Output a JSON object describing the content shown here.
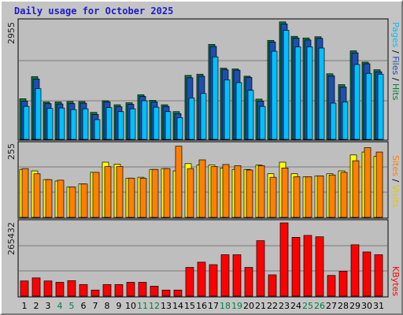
{
  "window": {
    "title": "Daily usage for October 2025"
  },
  "colors": {
    "background": "#c4c4c4",
    "plot_bg": "#bebebe",
    "pages": "#00c0ff",
    "files": "#2e8b57",
    "hits": "#008040",
    "sites": "#ff8000",
    "visits": "#ffff00",
    "kbytes": "#ff0000",
    "title": "#1c1cc8",
    "weekend_label": "#008040",
    "weekday_label": "#000000"
  },
  "chart_data": [
    {
      "type": "bar",
      "panel": "hits-files-pages",
      "ytick_top": "2955",
      "ymax": 2955,
      "right_label": {
        "first": "Pages",
        "sep1": " / ",
        "second": "Files",
        "sep2": " / ",
        "third": "Hits"
      },
      "categories": [
        "1",
        "2",
        "3",
        "4",
        "5",
        "6",
        "7",
        "8",
        "9",
        "10",
        "11",
        "12",
        "13",
        "14",
        "15",
        "16",
        "17",
        "18",
        "19",
        "20",
        "21",
        "22",
        "23",
        "24",
        "25",
        "26",
        "27",
        "28",
        "29",
        "30",
        "31"
      ],
      "weekend_days": [
        4,
        5,
        11,
        12,
        18,
        19,
        25,
        26
      ],
      "series": [
        {
          "name": "Hits",
          "values": [
            1010,
            1560,
            930,
            930,
            940,
            940,
            670,
            960,
            860,
            910,
            1110,
            970,
            860,
            690,
            1590,
            1620,
            2360,
            1770,
            1750,
            1570,
            1000,
            2460,
            2920,
            2560,
            2520,
            2550,
            1630,
            1360,
            2200,
            1920,
            1730
          ]
        },
        {
          "name": "Files",
          "values": [
            950,
            1500,
            890,
            880,
            890,
            900,
            620,
            930,
            810,
            870,
            1070,
            930,
            820,
            640,
            1530,
            1570,
            2310,
            1730,
            1720,
            1540,
            950,
            2420,
            2870,
            2520,
            2470,
            2510,
            1580,
            1300,
            2150,
            1880,
            1680
          ]
        },
        {
          "name": "Pages",
          "values": [
            820,
            1260,
            770,
            780,
            740,
            760,
            490,
            790,
            690,
            760,
            960,
            800,
            690,
            540,
            1030,
            1140,
            2050,
            1480,
            1410,
            1220,
            820,
            2190,
            2710,
            2300,
            2300,
            2270,
            900,
            930,
            1860,
            1640,
            1620
          ]
        }
      ]
    },
    {
      "type": "bar",
      "panel": "visits-sites",
      "ytick_top": "255",
      "ymax": 255,
      "right_label": {
        "first": "Sites",
        "sep1": " / ",
        "second": "Visits"
      },
      "categories": [
        "1",
        "2",
        "3",
        "4",
        "5",
        "6",
        "7",
        "8",
        "9",
        "10",
        "11",
        "12",
        "13",
        "14",
        "15",
        "16",
        "17",
        "18",
        "19",
        "20",
        "21",
        "22",
        "23",
        "24",
        "25",
        "26",
        "27",
        "28",
        "29",
        "30",
        "31"
      ],
      "series": [
        {
          "name": "Visits",
          "values": [
            165,
            160,
            130,
            125,
            105,
            115,
            155,
            190,
            183,
            135,
            138,
            165,
            168,
            160,
            185,
            180,
            180,
            170,
            165,
            165,
            180,
            150,
            190,
            150,
            140,
            143,
            150,
            160,
            215,
            225,
            210
          ]
        },
        {
          "name": "Sites",
          "values": [
            168,
            150,
            130,
            128,
            105,
            115,
            155,
            175,
            175,
            135,
            135,
            165,
            168,
            245,
            168,
            198,
            175,
            182,
            178,
            163,
            178,
            138,
            170,
            140,
            140,
            143,
            146,
            155,
            195,
            240,
            225
          ]
        }
      ]
    },
    {
      "type": "bar",
      "panel": "kbytes",
      "ytick_top": "265432",
      "ymax": 265432,
      "right_label": {
        "first": "KBytes"
      },
      "categories": [
        "1",
        "2",
        "3",
        "4",
        "5",
        "6",
        "7",
        "8",
        "9",
        "10",
        "11",
        "12",
        "13",
        "14",
        "15",
        "16",
        "17",
        "18",
        "19",
        "20",
        "21",
        "22",
        "23",
        "24",
        "25",
        "26",
        "27",
        "28",
        "29",
        "30",
        "31"
      ],
      "series": [
        {
          "name": "KBytes",
          "values": [
            55000,
            66000,
            55000,
            50000,
            56000,
            42000,
            22000,
            42000,
            42000,
            50000,
            50000,
            36000,
            22000,
            22000,
            104000,
            123000,
            114000,
            150000,
            150000,
            104000,
            201000,
            77000,
            265432,
            213000,
            220000,
            215000,
            75000,
            90000,
            186000,
            160000,
            150000
          ]
        }
      ]
    }
  ]
}
